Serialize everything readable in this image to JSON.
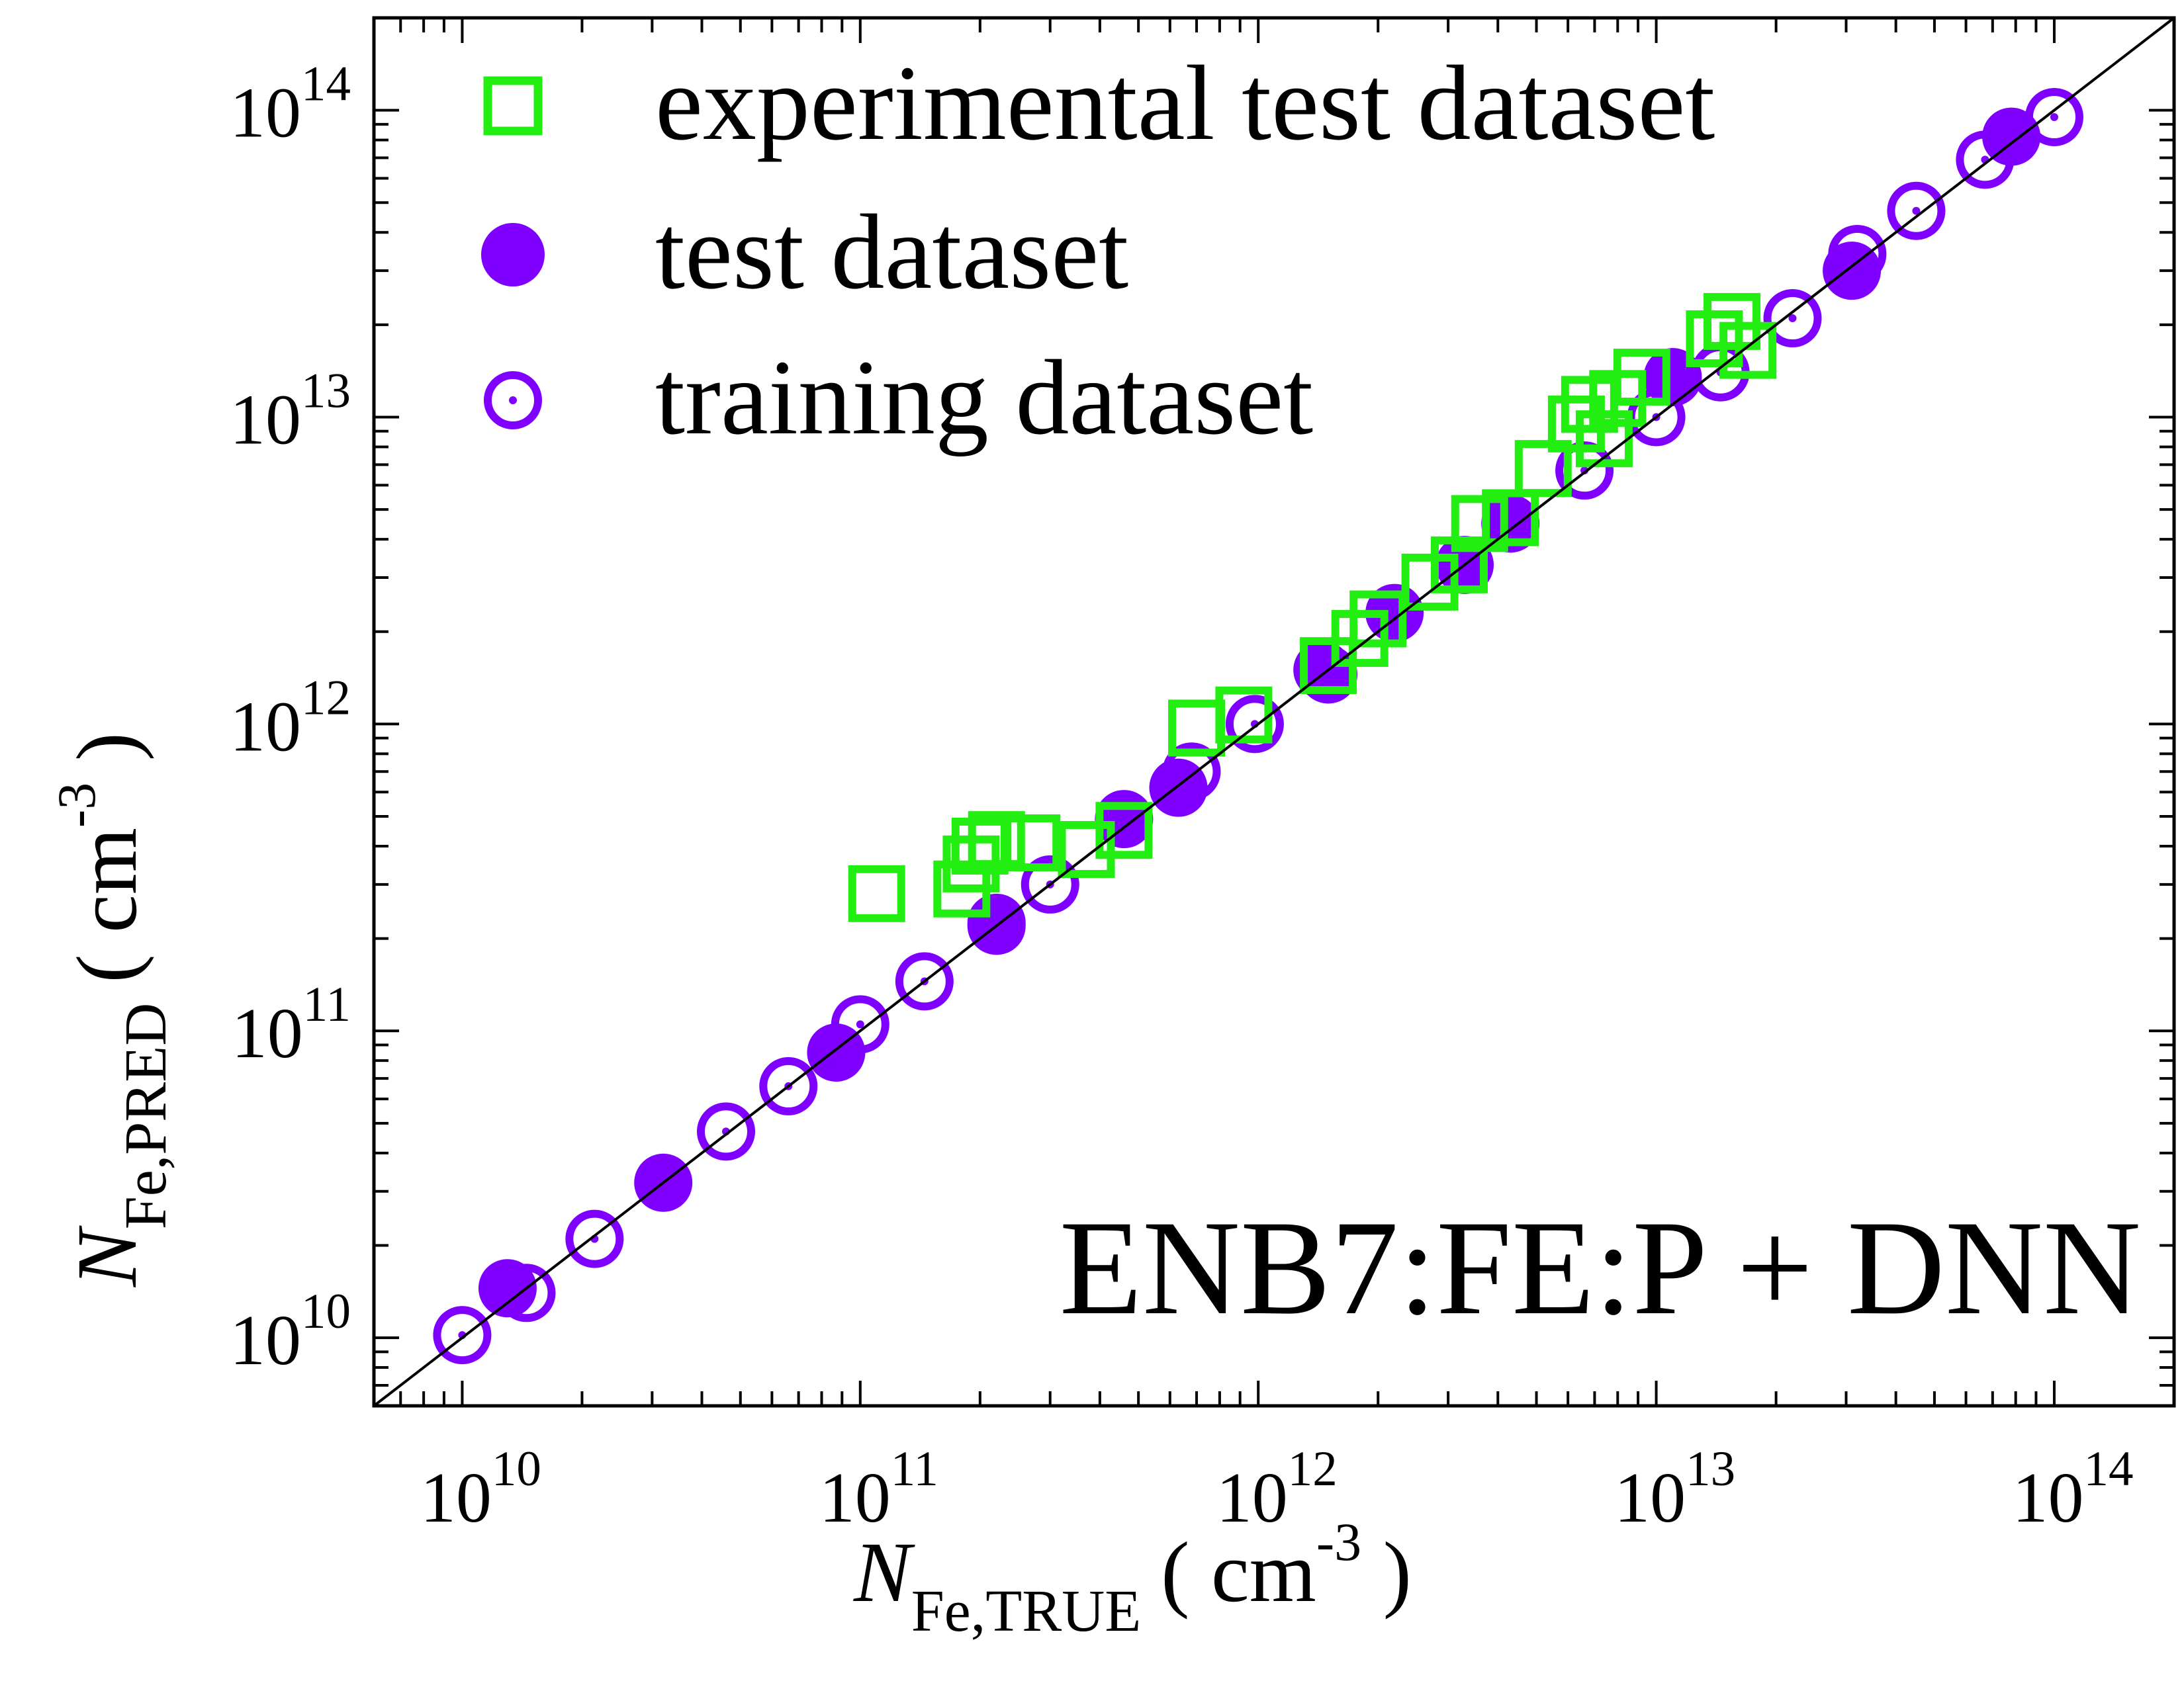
{
  "chart_data": {
    "type": "scatter",
    "title": "",
    "annotation": "ENB7:FE:P + DNN",
    "x_axis": {
      "scale": "log",
      "range": [
        6000000000.0,
        200000000000000.0
      ],
      "label_main": "N",
      "label_sub": "Fe,TRUE",
      "label_unit_open": "( cm",
      "label_unit_exp": "-3",
      "label_unit_close": " )",
      "ticks": [
        10000000000.0,
        100000000000.0,
        1000000000000.0,
        10000000000000.0,
        100000000000000.0
      ],
      "tick_labels": [
        {
          "base": "10",
          "exp": "10"
        },
        {
          "base": "10",
          "exp": "11"
        },
        {
          "base": "10",
          "exp": "12"
        },
        {
          "base": "10",
          "exp": "13"
        },
        {
          "base": "10",
          "exp": "14"
        }
      ]
    },
    "y_axis": {
      "scale": "log",
      "range": [
        6000000000.0,
        200000000000000.0
      ],
      "label_main": "N",
      "label_sub": "Fe,PRED",
      "label_unit_open": "( cm",
      "label_unit_exp": "-3",
      "label_unit_close": " )",
      "ticks": [
        10000000000.0,
        100000000000.0,
        1000000000000.0,
        10000000000000.0,
        100000000000000.0
      ],
      "tick_labels": [
        {
          "base": "10",
          "exp": "10"
        },
        {
          "base": "10",
          "exp": "11"
        },
        {
          "base": "10",
          "exp": "12"
        },
        {
          "base": "10",
          "exp": "13"
        },
        {
          "base": "10",
          "exp": "14"
        }
      ]
    },
    "grid": false,
    "reference_line": "y = x",
    "legend_position": "top-left",
    "series": [
      {
        "name": "experimental test dataset",
        "marker": "open-square",
        "color": "#22ee11",
        "points": [
          [
            110000000000.0,
            280000000000.0
          ],
          [
            180000000000.0,
            290000000000.0
          ],
          [
            190000000000.0,
            350000000000.0
          ],
          [
            200000000000.0,
            400000000000.0
          ],
          [
            220000000000.0,
            420000000000.0
          ],
          [
            270000000000.0,
            410000000000.0
          ],
          [
            370000000000.0,
            390000000000.0
          ],
          [
            460000000000.0,
            450000000000.0
          ],
          [
            700000000000.0,
            970000000000.0
          ],
          [
            920000000000.0,
            1070000000000.0
          ],
          [
            1500000000000.0,
            1550000000000.0
          ],
          [
            1800000000000.0,
            1900000000000.0
          ],
          [
            2000000000000.0,
            2200000000000.0
          ],
          [
            2700000000000.0,
            2900000000000.0
          ],
          [
            3200000000000.0,
            3300000000000.0
          ],
          [
            3600000000000.0,
            4500000000000.0
          ],
          [
            4300000000000.0,
            4700000000000.0
          ],
          [
            5200000000000.0,
            6800000000000.0
          ],
          [
            6300000000000.0,
            9500000000000.0
          ],
          [
            6800000000000.0,
            11000000000000.0
          ],
          [
            7400000000000.0,
            8500000000000.0
          ],
          [
            8000000000000.0,
            11500000000000.0
          ],
          [
            9200000000000.0,
            13500000000000.0
          ],
          [
            14000000000000.0,
            18000000000000.0
          ],
          [
            15500000000000.0,
            20500000000000.0
          ],
          [
            17000000000000.0,
            16500000000000.0
          ]
        ]
      },
      {
        "name": "test dataset",
        "marker": "filled-circle",
        "color": "#8000ff",
        "points": [
          [
            13000000000.0,
            14500000000.0
          ],
          [
            32000000000.0,
            32000000000.0
          ],
          [
            87000000000.0,
            85000000000.0
          ],
          [
            220000000000.0,
            220000000000.0
          ],
          [
            460000000000.0,
            490000000000.0
          ],
          [
            630000000000.0,
            620000000000.0
          ],
          [
            1500000000000.0,
            1450000000000.0
          ],
          [
            2200000000000.0,
            2300000000000.0
          ],
          [
            3300000000000.0,
            3300000000000.0
          ],
          [
            4300000000000.0,
            4500000000000.0
          ],
          [
            11000000000000.0,
            13500000000000.0
          ],
          [
            31000000000000.0,
            30000000000000.0
          ],
          [
            78000000000000.0,
            82000000000000.0
          ]
        ]
      },
      {
        "name": "training dataset",
        "marker": "open-dotted-circle",
        "color": "#8000ff",
        "points": [
          [
            10000000000.0,
            10200000000.0
          ],
          [
            14500000000.0,
            14000000000.0
          ],
          [
            21500000000.0,
            21000000000.0
          ],
          [
            46000000000.0,
            47000000000.0
          ],
          [
            66000000000.0,
            66000000000.0
          ],
          [
            100000000000.0,
            105000000000.0
          ],
          [
            145000000000.0,
            145000000000.0
          ],
          [
            220000000000.0,
            225000000000.0
          ],
          [
            300000000000.0,
            300000000000.0
          ],
          [
            680000000000.0,
            700000000000.0
          ],
          [
            980000000000.0,
            1000000000000.0
          ],
          [
            1450000000000.0,
            1500000000000.0
          ],
          [
            6600000000000.0,
            6700000000000.0
          ],
          [
            10000000000000.0,
            10000000000000.0
          ],
          [
            14500000000000.0,
            14000000000000.0
          ],
          [
            22000000000000.0,
            21000000000000.0
          ],
          [
            32000000000000.0,
            34000000000000.0
          ],
          [
            45000000000000.0,
            47000000000000.0
          ],
          [
            67000000000000.0,
            69000000000000.0
          ],
          [
            100000000000000.0,
            95000000000000.0
          ]
        ]
      }
    ]
  }
}
